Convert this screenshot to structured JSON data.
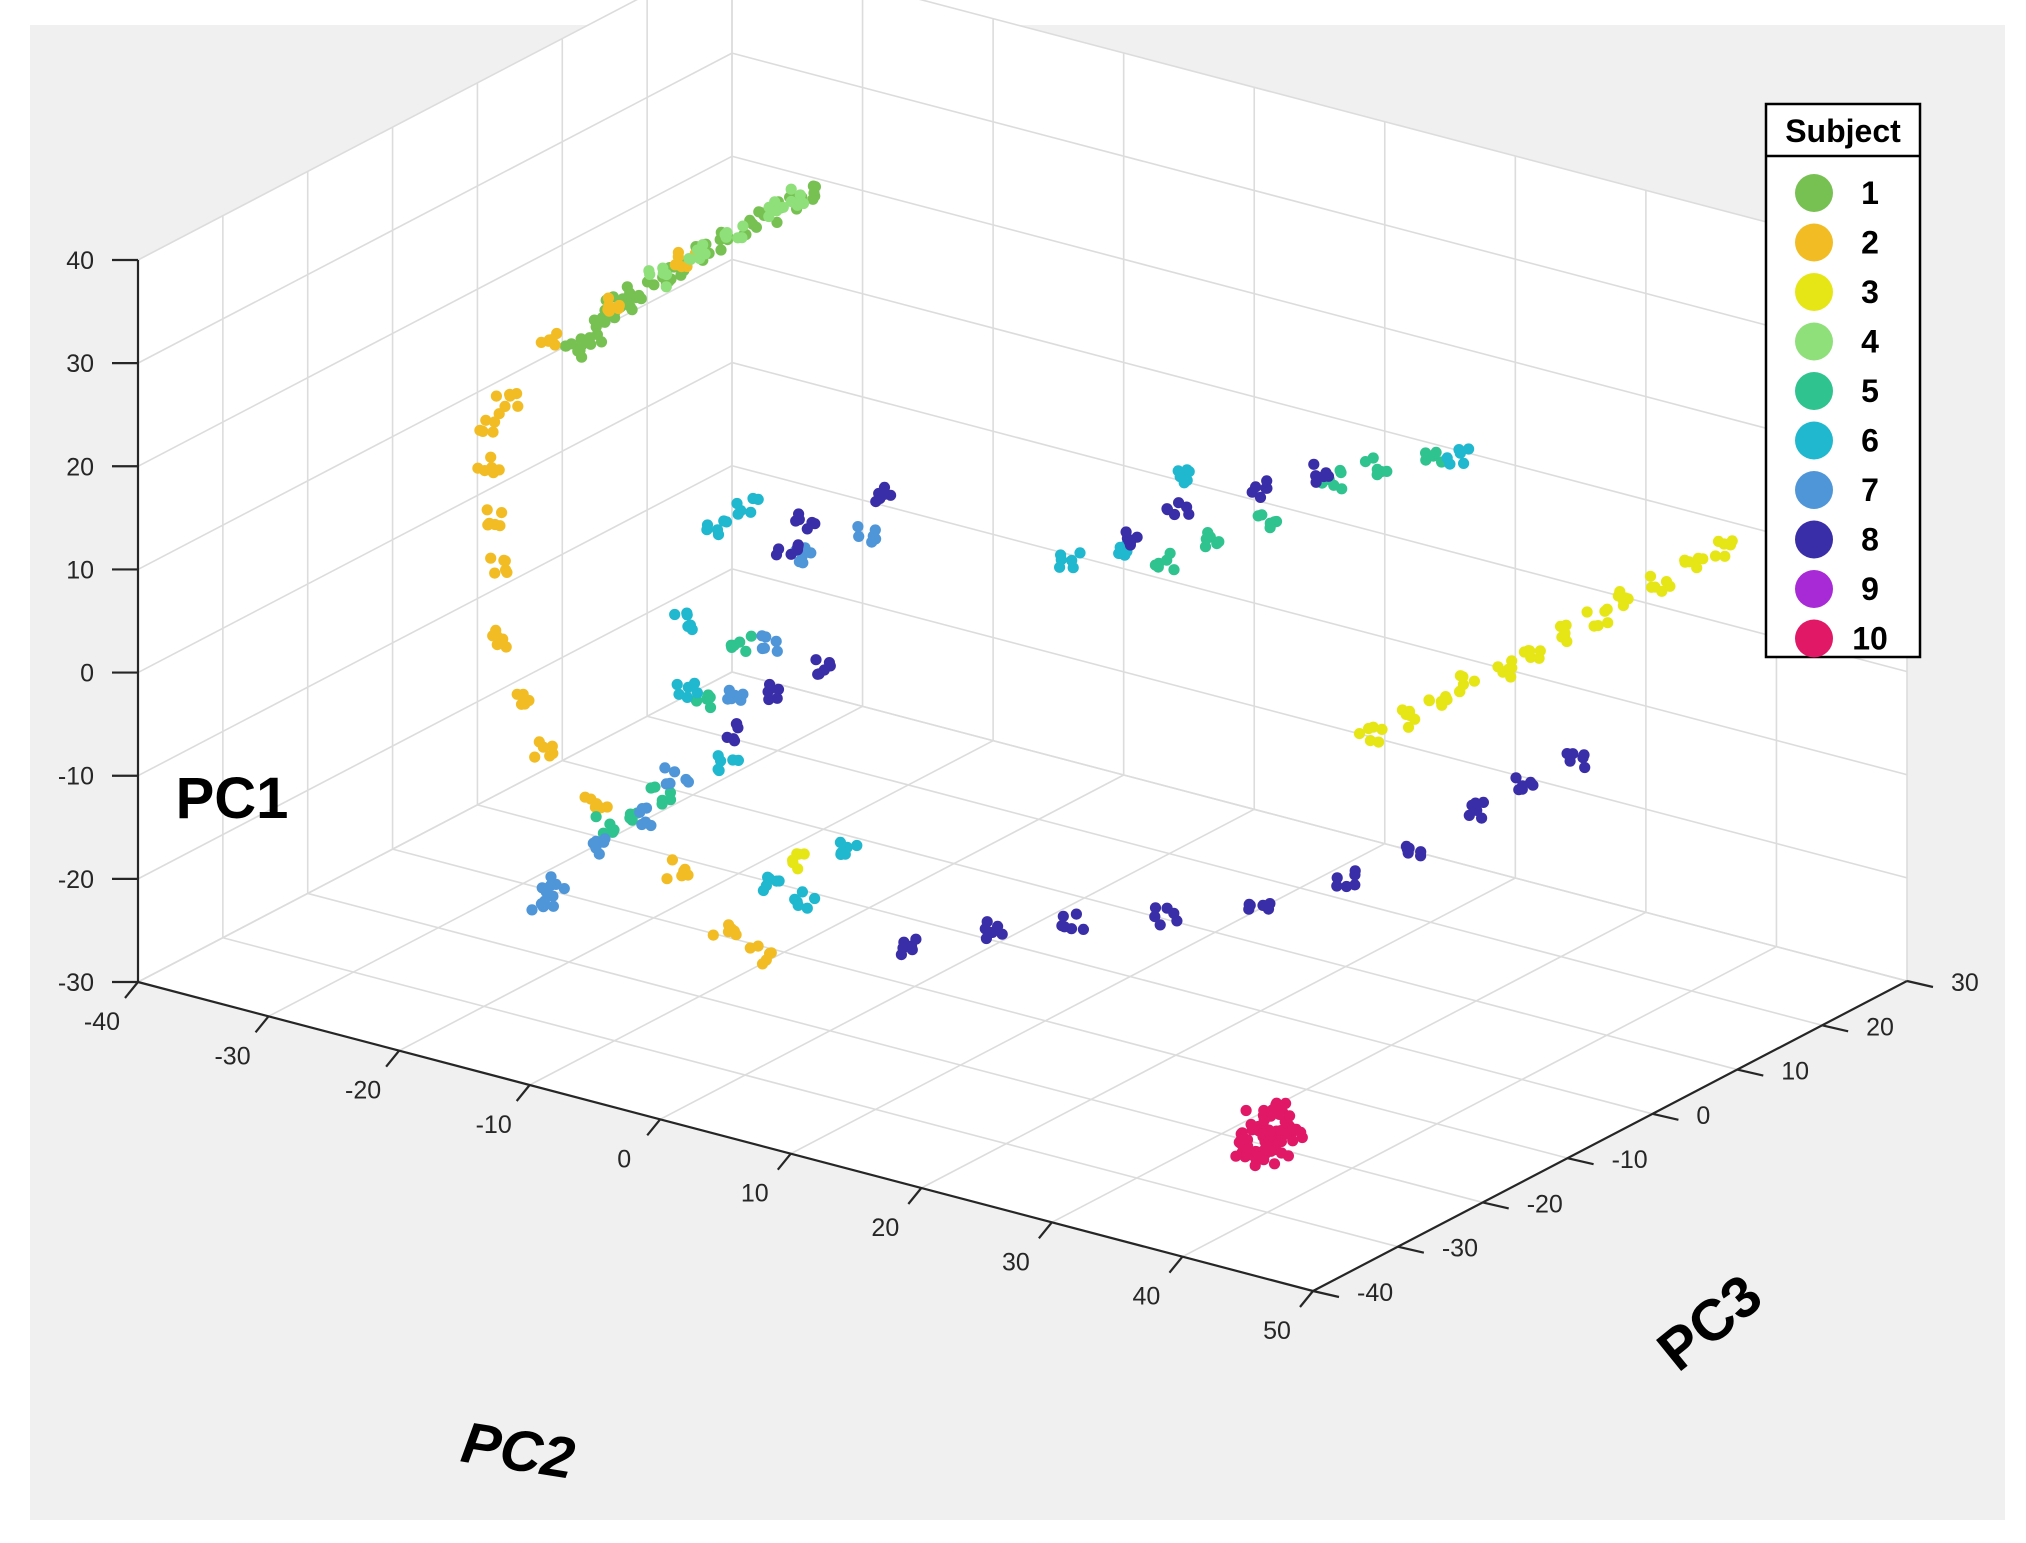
{
  "chart_data": {
    "type": "scatter3d",
    "title": "",
    "xlabel": "PC2",
    "ylabel": "PC3",
    "zlabel": "PC1",
    "xlim": [
      -40,
      50
    ],
    "ylim": [
      -40,
      30
    ],
    "zlim": [
      -30,
      40
    ],
    "x_ticks": [
      "-40",
      "-30",
      "-20",
      "-10",
      "0",
      "10",
      "20",
      "30",
      "40",
      "50"
    ],
    "y_ticks": [
      "-40",
      "-30",
      "-20",
      "-10",
      "0",
      "10",
      "20",
      "30"
    ],
    "z_ticks": [
      "-30",
      "-20",
      "-10",
      "0",
      "10",
      "20",
      "30",
      "40"
    ],
    "grid": true,
    "legend": {
      "title": "Subject",
      "location": "top-right",
      "entries": [
        "1",
        "2",
        "3",
        "4",
        "5",
        "6",
        "7",
        "8",
        "9",
        "10"
      ]
    },
    "series": [
      {
        "name": "1",
        "color": "#77c152",
        "points": [
          [
            -21.7,
            11.0,
            31.0
          ],
          [
            -22.8,
            10.1,
            29.8
          ],
          [
            -23.8,
            9.2,
            28.6
          ],
          [
            -24.9,
            8.3,
            27.4
          ],
          [
            -26.0,
            7.4,
            26.1
          ],
          [
            -27.1,
            6.6,
            24.9
          ],
          [
            -28.1,
            5.7,
            23.7
          ],
          [
            -29.2,
            4.8,
            22.5
          ],
          [
            -30.3,
            3.9,
            21.3
          ],
          [
            -30.9,
            3.4,
            20.5
          ],
          [
            -31.6,
            2.8,
            19.6
          ],
          [
            -32.0,
            2.2,
            18.4
          ],
          [
            -32.4,
            1.6,
            17.1
          ],
          [
            -33.1,
            0.9,
            15.7
          ]
        ]
      },
      {
        "name": "2",
        "color": "#f2bd24",
        "points": [
          [
            -28.0,
            6.0,
            24.5
          ],
          [
            -31.5,
            3.0,
            20.0
          ],
          [
            -34.1,
            -0.5,
            17.0
          ],
          [
            -35.3,
            -3.7,
            12.6
          ],
          [
            -35.5,
            -5.7,
            11.0
          ],
          [
            -34.8,
            -6.6,
            7.5
          ],
          [
            -33.5,
            -8.0,
            3.5
          ],
          [
            -32.5,
            -9.0,
            -0.5
          ],
          [
            -31.2,
            -10.5,
            -6.5
          ],
          [
            -28.5,
            -12.5,
            -10.8
          ],
          [
            -26.0,
            -13.5,
            -14.0
          ],
          [
            -21.5,
            -14.5,
            -17.5
          ],
          [
            -15.0,
            -15.0,
            -21.5
          ],
          [
            -11.0,
            -15.5,
            -26.0
          ],
          [
            -8.0,
            -16.0,
            -27.0
          ]
        ]
      },
      {
        "name": "3",
        "color": "#e6e617",
        "points": [
          [
            44.0,
            18.0,
            15.0
          ],
          [
            42.5,
            16.5,
            13.5
          ],
          [
            41.0,
            15.0,
            12.0
          ],
          [
            39.5,
            13.5,
            10.5
          ],
          [
            38.0,
            12.0,
            9.0
          ],
          [
            36.5,
            10.5,
            7.5
          ],
          [
            35.0,
            9.0,
            6.0
          ],
          [
            33.5,
            7.5,
            4.5
          ],
          [
            32.0,
            6.0,
            3.0
          ],
          [
            30.5,
            4.5,
            1.5
          ],
          [
            29.0,
            3.0,
            0.0
          ],
          [
            27.5,
            1.5,
            -1.5
          ],
          [
            -6.5,
            -14.0,
            -18.5
          ]
        ]
      },
      {
        "name": "4",
        "color": "#8fe07a",
        "points": [
          [
            -22.0,
            10.5,
            30.5
          ],
          [
            -23.5,
            9.5,
            29.0
          ],
          [
            -25.5,
            8.0,
            27.0
          ],
          [
            -27.5,
            6.5,
            25.0
          ],
          [
            -29.5,
            5.0,
            22.5
          ]
        ]
      },
      {
        "name": "5",
        "color": "#2fc38f",
        "points": [
          [
            22.0,
            17.0,
            17.0
          ],
          [
            19.5,
            14.5,
            16.5
          ],
          [
            17.5,
            12.0,
            15.5
          ],
          [
            14.5,
            9.0,
            12.0
          ],
          [
            12.0,
            6.0,
            10.5
          ],
          [
            10.0,
            4.0,
            8.5
          ],
          [
            -12.0,
            -12.0,
            0.0
          ],
          [
            -14.5,
            -13.0,
            -6.0
          ],
          [
            -16.5,
            -14.5,
            -15.0
          ],
          [
            -18.5,
            -15.5,
            -17.5
          ],
          [
            -20.0,
            -16.0,
            -18.5
          ]
        ]
      },
      {
        "name": "6",
        "color": "#1fb8cf",
        "points": [
          [
            23.5,
            18.0,
            17.0
          ],
          [
            10.0,
            7.0,
            15.5
          ],
          [
            6.0,
            5.5,
            7.5
          ],
          [
            3.5,
            3.0,
            7.0
          ],
          [
            -15.0,
            -6.5,
            10.0
          ],
          [
            -17.0,
            -7.0,
            7.5
          ],
          [
            -17.5,
            -10.0,
            -0.5
          ],
          [
            -16.0,
            -12.0,
            -6.0
          ],
          [
            -12.0,
            -13.5,
            -11.0
          ],
          [
            -7.0,
            -16.5,
            -19.5
          ],
          [
            -4.0,
            -17.0,
            -20.0
          ],
          [
            -2.5,
            -14.0,
            -16.0
          ]
        ]
      },
      {
        "name": "7",
        "color": "#4f96d9",
        "points": [
          [
            -9.0,
            -2.0,
            7.5
          ],
          [
            -12.0,
            -5.0,
            5.5
          ],
          [
            -10.5,
            -10.5,
            0.0
          ],
          [
            -12.0,
            -12.5,
            -5.0
          ],
          [
            -15.0,
            -15.0,
            -12.5
          ],
          [
            -17.5,
            -15.5,
            -17.0
          ],
          [
            -20.0,
            -17.0,
            -20.0
          ],
          [
            -22.5,
            -18.0,
            -24.0
          ],
          [
            -23.0,
            -18.5,
            -26.0
          ]
        ]
      },
      {
        "name": "8",
        "color": "#3a2ea8",
        "points": [
          [
            16.0,
            13.5,
            15.0
          ],
          [
            13.0,
            11.0,
            13.5
          ],
          [
            9.5,
            6.5,
            12.5
          ],
          [
            6.5,
            5.0,
            9.0
          ],
          [
            -7.0,
            -3.0,
            12.5
          ],
          [
            -11.0,
            -6.0,
            9.5
          ],
          [
            -12.0,
            -6.5,
            7.0
          ],
          [
            -7.5,
            -9.0,
            -2.0
          ],
          [
            -10.0,
            -10.5,
            -4.5
          ],
          [
            -13.0,
            -11.5,
            -9.0
          ],
          [
            35.5,
            13.0,
            -6.0
          ],
          [
            33.0,
            11.0,
            -8.5
          ],
          [
            30.5,
            9.0,
            -11.0
          ],
          [
            27.5,
            6.0,
            -14.5
          ],
          [
            24.5,
            3.0,
            -17.0
          ],
          [
            20.5,
            -1.0,
            -19.5
          ],
          [
            16.0,
            -5.0,
            -20.0
          ],
          [
            11.5,
            -9.0,
            -20.5
          ],
          [
            7.5,
            -12.5,
            -21.0
          ],
          [
            3.0,
            -15.0,
            -23.0
          ]
        ]
      },
      {
        "name": "9",
        "color": "#a82ad6",
        "points": []
      },
      {
        "name": "10",
        "color": "#e01866",
        "points": [
          [
            34.5,
            -21.0,
            -26.5
          ],
          [
            35.0,
            -22.0,
            -27.0
          ],
          [
            34.0,
            -22.5,
            -28.0
          ],
          [
            35.5,
            -21.5,
            -28.5
          ],
          [
            33.5,
            -21.0,
            -27.5
          ],
          [
            34.8,
            -23.0,
            -29.0
          ],
          [
            35.8,
            -22.5,
            -27.8
          ],
          [
            33.8,
            -22.0,
            -29.2
          ],
          [
            34.2,
            -20.5,
            -27.0
          ],
          [
            35.2,
            -20.8,
            -28.2
          ],
          [
            34.5,
            -23.5,
            -28.8
          ],
          [
            36.0,
            -21.8,
            -28.0
          ]
        ]
      }
    ]
  }
}
